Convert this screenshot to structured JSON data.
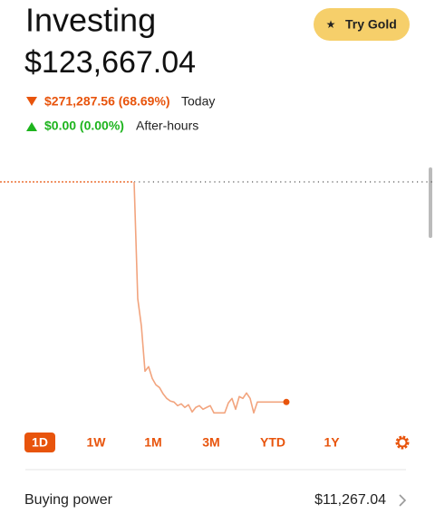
{
  "header": {
    "title": "Investing",
    "gold_button": "Try Gold"
  },
  "portfolio": {
    "value": "$123,667.04",
    "today": {
      "change": "$271,287.56 (68.69%)",
      "label": "Today"
    },
    "after_hours": {
      "change": "$0.00 (0.00%)",
      "label": "After-hours"
    }
  },
  "chart_data": {
    "type": "line",
    "color": "#f2a47e",
    "end_color": "#e8540c",
    "previous_close": 394955,
    "ylim": [
      95000,
      418400
    ],
    "values": [
      394955,
      251000,
      217400,
      161600,
      167200,
      152700,
      144900,
      141500,
      133700,
      128100,
      124800,
      123667,
      119200,
      121400,
      117000,
      120300,
      111400,
      117000,
      119200,
      114700,
      117000,
      119200,
      110300,
      110300,
      110300,
      110300,
      122600,
      128100,
      114700,
      130400,
      128100,
      134800,
      128100,
      110300,
      123667,
      123667,
      123667,
      123667,
      123667,
      123667,
      123667,
      123667,
      123667.04
    ]
  },
  "ranges": [
    "1D",
    "1W",
    "1M",
    "3M",
    "YTD",
    "1Y"
  ],
  "buying_power": {
    "label": "Buying power",
    "value": "$11,267.04"
  }
}
